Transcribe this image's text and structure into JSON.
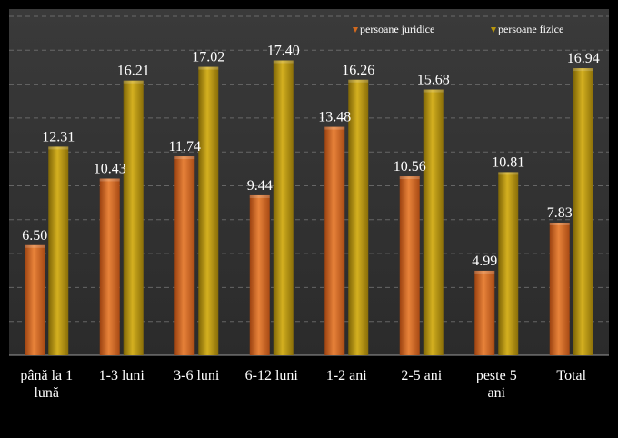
{
  "chart_data": {
    "type": "bar",
    "title": "",
    "xlabel": "",
    "ylabel": "",
    "ylim": [
      0,
      20
    ],
    "grid": true,
    "legend_position": "top-right",
    "categories": [
      [
        "până la 1",
        "lună"
      ],
      [
        "1-3 luni"
      ],
      [
        "3-6 luni"
      ],
      [
        "6-12 luni"
      ],
      [
        "1-2 ani"
      ],
      [
        "2-5 ani"
      ],
      [
        "peste 5",
        "ani"
      ],
      [
        "Total"
      ]
    ],
    "series": [
      {
        "name": "persoane juridice",
        "color": "#D2691E",
        "values": [
          6.5,
          10.43,
          11.74,
          9.44,
          13.48,
          10.56,
          4.99,
          7.83
        ],
        "labels": [
          "6.50",
          "10.43",
          "11.74",
          "9.44",
          "13.48",
          "10.56",
          "4.99",
          "7.83"
        ]
      },
      {
        "name": "persoane fizice",
        "color": "#B8960B",
        "values": [
          12.31,
          16.21,
          17.02,
          17.4,
          16.26,
          15.68,
          10.81,
          16.94
        ],
        "labels": [
          "12.31",
          "16.21",
          "17.02",
          "17.40",
          "16.26",
          "15.68",
          "10.81",
          "16.94"
        ]
      }
    ]
  }
}
